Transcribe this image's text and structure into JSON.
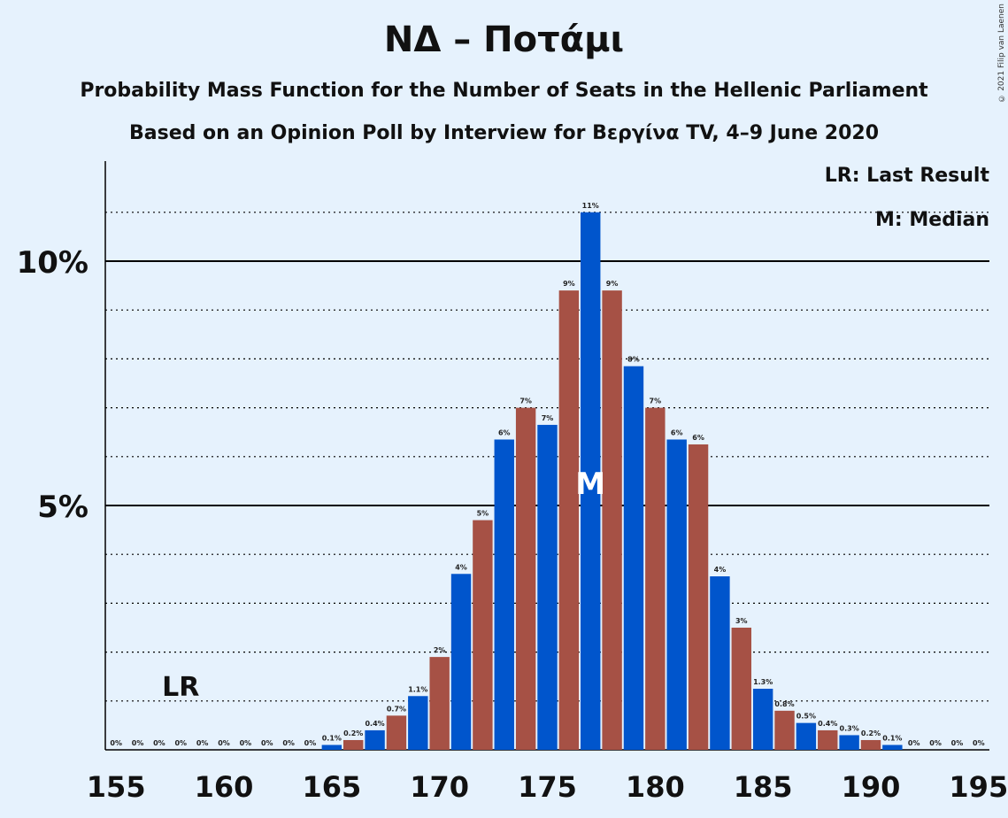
{
  "title": "ΝΔ – Ποτάμι",
  "subtitle1": "Probability Mass Function for the Number of Seats in the Hellenic Parliament",
  "subtitle2": "Based on an Opinion Poll by Interview for Βεργίνα TV, 4–9 June 2020",
  "copyright": "© 2021 Filip van Laenen",
  "legend": {
    "lr": "LR: Last Result",
    "median": "M: Median"
  },
  "colors": {
    "blue": "#0055cc",
    "red": "#a65145",
    "background": "#e6f2fd"
  },
  "chart_data": {
    "type": "bar",
    "x": [
      155,
      156,
      157,
      158,
      159,
      160,
      161,
      162,
      163,
      164,
      165,
      166,
      167,
      168,
      169,
      170,
      171,
      172,
      173,
      174,
      175,
      176,
      177,
      178,
      179,
      180,
      181,
      182,
      183,
      184,
      185,
      186,
      187,
      188,
      189,
      190,
      191,
      192,
      193,
      194,
      195
    ],
    "values": [
      0,
      0,
      0,
      0,
      0,
      0,
      0,
      0,
      0,
      0,
      0.1,
      0.2,
      0.4,
      0.7,
      1.1,
      1.9,
      3.6,
      4.7,
      6.35,
      7.0,
      6.65,
      9.4,
      11.0,
      9.4,
      7.85,
      7.0,
      6.35,
      6.25,
      3.55,
      2.5,
      1.25,
      0.8,
      0.55,
      0.4,
      0.3,
      0.2,
      0.1,
      0,
      0,
      0,
      0
    ],
    "labels": [
      "0%",
      "0%",
      "0%",
      "0%",
      "0%",
      "0%",
      "0%",
      "0%",
      "0%",
      "0%",
      "0.1%",
      "0.2%",
      "0.4%",
      "0.7%",
      "1.1%",
      "2%",
      "4%",
      "5%",
      "6%",
      "7%",
      "7%",
      "9%",
      "11%",
      "9%",
      "8%",
      "7%",
      "6%",
      "6%",
      "4%",
      "3%",
      "1.3%",
      "0.8%",
      "0.5%",
      "0.4%",
      "0.3%",
      "0.2%",
      "0.1%",
      "0%",
      "0%",
      "0%",
      "0%"
    ],
    "xticks": [
      "155",
      "160",
      "165",
      "170",
      "175",
      "180",
      "185",
      "190",
      "195"
    ],
    "yticks": [
      "5%",
      "10%"
    ],
    "ylim": [
      0,
      12
    ],
    "last_result": 158,
    "last_result_label": "LR",
    "median": 177,
    "median_label": "M",
    "grid": true
  }
}
